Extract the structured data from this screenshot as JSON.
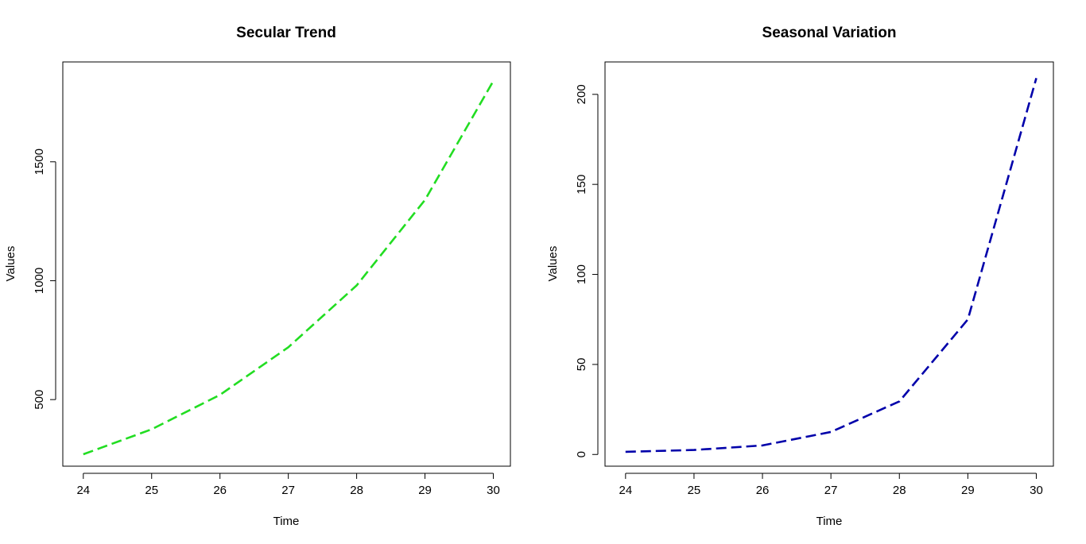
{
  "chart_data": [
    {
      "type": "line",
      "title": "Secular Trend",
      "xlabel": "Time",
      "ylabel": "Values",
      "x": [
        24,
        25,
        26,
        27,
        28,
        29,
        30
      ],
      "series": [
        {
          "values": [
            270,
            375,
            520,
            720,
            980,
            1340,
            1840
          ],
          "color": "#22dd22",
          "line_style": "dashed"
        }
      ],
      "xlim": [
        23.7,
        30.25
      ],
      "ylim": [
        220,
        1920
      ],
      "xticks": [
        24,
        25,
        26,
        27,
        28,
        29,
        30
      ],
      "yticks": [
        500,
        1000,
        1500
      ],
      "grid": false,
      "legend": "none"
    },
    {
      "type": "line",
      "title": "Seasonal Variation",
      "xlabel": "Time",
      "ylabel": "Values",
      "x": [
        24,
        25,
        26,
        27,
        28,
        29,
        30
      ],
      "series": [
        {
          "values": [
            1.5,
            2.5,
            5,
            12.5,
            29.5,
            75,
            209
          ],
          "color": "#0000aa",
          "line_style": "dashed"
        }
      ],
      "xlim": [
        23.7,
        30.25
      ],
      "ylim": [
        -6.5,
        218
      ],
      "xticks": [
        24,
        25,
        26,
        27,
        28,
        29,
        30
      ],
      "yticks": [
        0,
        50,
        100,
        150,
        200
      ],
      "grid": false,
      "legend": "none"
    }
  ]
}
